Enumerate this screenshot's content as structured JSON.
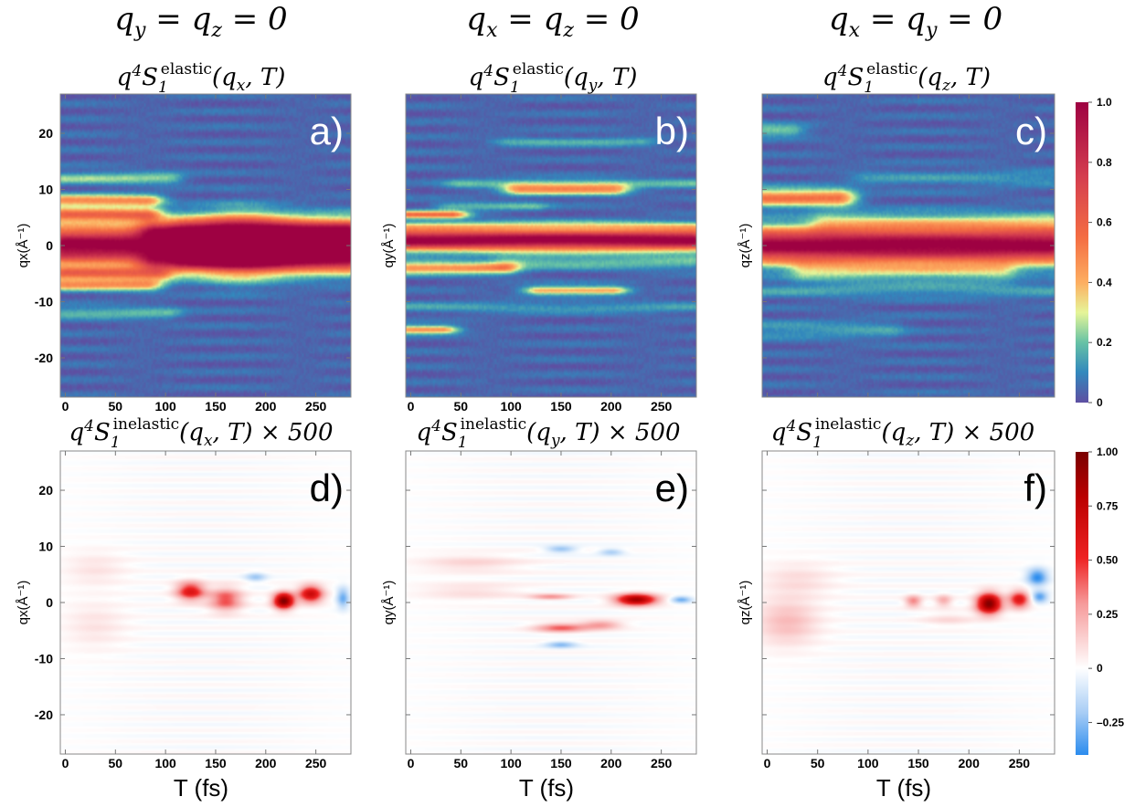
{
  "chart_data": [
    {
      "type": "heatmap",
      "panel_label": "a)",
      "column_header": "q_y = q_z = 0",
      "title": "q^4 S_1^elastic(q_x, T)",
      "xlabel": "",
      "ylabel": "qx(Å⁻¹)",
      "x_range": [
        -5,
        285
      ],
      "y_range": [
        -27,
        27
      ],
      "x_ticks": [
        "0",
        "50",
        "100",
        "150",
        "200",
        "250"
      ],
      "y_ticks": [
        "20",
        "10",
        "0",
        "-10",
        "-20"
      ],
      "colormap": "spectral",
      "colorbar": [
        0,
        1
      ],
      "features": [
        {
          "q": 0,
          "width": 3.3,
          "t_start": 0,
          "t_end": 280,
          "value": 1.0
        },
        {
          "q": 2.8,
          "width": 1.5,
          "t_start": 90,
          "t_end": 280,
          "value": 0.45
        },
        {
          "q": -2.8,
          "width": 1.5,
          "t_start": 90,
          "t_end": 280,
          "value": 0.4
        },
        {
          "q": 5.5,
          "width": 1.2,
          "t_start": 0,
          "t_end": 80,
          "value": 0.5
        },
        {
          "q": 8.0,
          "width": 1.0,
          "t_start": 0,
          "t_end": 80,
          "value": 0.45
        },
        {
          "q": -5.0,
          "width": 1.2,
          "t_start": 0,
          "t_end": 90,
          "value": 0.45
        },
        {
          "q": -7.0,
          "width": 1.0,
          "t_start": 0,
          "t_end": 80,
          "value": 0.4
        },
        {
          "q": 12.0,
          "width": 1.0,
          "t_start": 0,
          "t_end": 100,
          "value": 0.2
        },
        {
          "q": -12.0,
          "width": 1.0,
          "t_start": 0,
          "t_end": 100,
          "value": 0.15
        },
        {
          "q": 4.0,
          "width": 2.0,
          "t_start": 120,
          "t_end": 280,
          "value": 0.15
        },
        {
          "q": -4.0,
          "width": 2.0,
          "t_start": 120,
          "t_end": 280,
          "value": 0.15
        }
      ]
    },
    {
      "type": "heatmap",
      "panel_label": "b)",
      "column_header": "q_x = q_z = 0",
      "title": "q^4 S_1^elastic(q_y, T)",
      "xlabel": "",
      "ylabel": "qy(Å⁻¹)",
      "x_range": [
        -5,
        285
      ],
      "y_range": [
        -27,
        27
      ],
      "x_ticks": [
        "0",
        "50",
        "100",
        "150",
        "200",
        "250"
      ],
      "y_ticks": [],
      "colormap": "spectral",
      "colorbar": [
        0,
        1
      ],
      "features": [
        {
          "q": 1.0,
          "width": 1.8,
          "t_start": 0,
          "t_end": 280,
          "value": 1.0
        },
        {
          "q": 3.5,
          "width": 0.8,
          "t_start": 0,
          "t_end": 280,
          "value": 0.2
        },
        {
          "q": 5.5,
          "width": 0.7,
          "t_start": 0,
          "t_end": 40,
          "value": 0.5
        },
        {
          "q": 10.0,
          "width": 1.0,
          "t_start": 110,
          "t_end": 200,
          "value": 0.4
        },
        {
          "q": 11.0,
          "width": 0.8,
          "t_start": 50,
          "t_end": 280,
          "value": 0.15
        },
        {
          "q": -4.0,
          "width": 1.0,
          "t_start": 0,
          "t_end": 90,
          "value": 0.45
        },
        {
          "q": -3.0,
          "width": 1.2,
          "t_start": 100,
          "t_end": 280,
          "value": 0.15
        },
        {
          "q": -8.0,
          "width": 0.7,
          "t_start": 130,
          "t_end": 200,
          "value": 0.4
        },
        {
          "q": -15.0,
          "width": 0.7,
          "t_start": 0,
          "t_end": 30,
          "value": 0.45
        },
        {
          "q": 18.5,
          "width": 0.8,
          "t_start": 100,
          "t_end": 230,
          "value": 0.12
        },
        {
          "q": -11.0,
          "width": 0.9,
          "t_start": 0,
          "t_end": 280,
          "value": 0.1
        },
        {
          "q": 7.0,
          "width": 0.7,
          "t_start": 40,
          "t_end": 120,
          "value": 0.15
        }
      ]
    },
    {
      "type": "heatmap",
      "panel_label": "c)",
      "column_header": "q_x = q_y = 0",
      "title": "q^4 S_1^elastic(q_z, T)",
      "xlabel": "",
      "ylabel": "qz(Å⁻¹)",
      "x_range": [
        -5,
        285
      ],
      "y_range": [
        -27,
        27
      ],
      "x_ticks": [],
      "y_ticks": [],
      "colormap": "spectral",
      "colorbar": [
        0,
        1
      ],
      "features": [
        {
          "q": 0,
          "width": 3.0,
          "t_start": 0,
          "t_end": 280,
          "value": 1.0
        },
        {
          "q": 8.5,
          "width": 1.5,
          "t_start": 0,
          "t_end": 70,
          "value": 0.5
        },
        {
          "q": 4.0,
          "width": 1.8,
          "t_start": 60,
          "t_end": 280,
          "value": 0.2
        },
        {
          "q": -4.5,
          "width": 1.8,
          "t_start": 40,
          "t_end": 230,
          "value": 0.2
        },
        {
          "q": -8.0,
          "width": 1.2,
          "t_start": 0,
          "t_end": 280,
          "value": 0.1
        },
        {
          "q": 20.5,
          "width": 1.0,
          "t_start": 0,
          "t_end": 20,
          "value": 0.2
        },
        {
          "q": -15.0,
          "width": 1.5,
          "t_start": 0,
          "t_end": 120,
          "value": 0.1
        },
        {
          "q": 12.0,
          "width": 1.5,
          "t_start": 100,
          "t_end": 280,
          "value": 0.08
        }
      ]
    },
    {
      "type": "heatmap",
      "panel_label": "d)",
      "title": "q^4 S_1^inelastic(q_x, T) × 500",
      "xlabel": "T (fs)",
      "ylabel": "qx(Å⁻¹)",
      "x_range": [
        -5,
        285
      ],
      "y_range": [
        -27,
        27
      ],
      "x_ticks": [
        "0",
        "50",
        "100",
        "150",
        "200",
        "250"
      ],
      "y_ticks": [
        "20",
        "10",
        "0",
        "-10",
        "-20"
      ],
      "colormap": "diverging",
      "colorbar": [
        -0.4,
        1
      ],
      "blobs": [
        {
          "t": 125,
          "q": 2.0,
          "st": 14,
          "sq": 1.6,
          "value": 0.6
        },
        {
          "t": 160,
          "q": 0.5,
          "st": 16,
          "sq": 2.0,
          "value": 0.45
        },
        {
          "t": 218,
          "q": 0.3,
          "st": 10,
          "sq": 1.4,
          "value": 1.0
        },
        {
          "t": 245,
          "q": 1.5,
          "st": 12,
          "sq": 1.5,
          "value": 0.7
        },
        {
          "t": 277,
          "q": 0.8,
          "st": 6,
          "sq": 1.8,
          "value": -0.3
        },
        {
          "t": 30,
          "q": 6.0,
          "st": 30,
          "sq": 3.0,
          "value": 0.08
        },
        {
          "t": 30,
          "q": -4.0,
          "st": 30,
          "sq": 4.0,
          "value": 0.08
        },
        {
          "t": 190,
          "q": 4.5,
          "st": 10,
          "sq": 0.8,
          "value": -0.2
        }
      ]
    },
    {
      "type": "heatmap",
      "panel_label": "e)",
      "title": "q^4 S_1^inelastic(q_y, T) × 500",
      "xlabel": "T (fs)",
      "ylabel": "qy(Å⁻¹)",
      "x_range": [
        -5,
        285
      ],
      "y_range": [
        -27,
        27
      ],
      "x_ticks": [
        "0",
        "50",
        "100",
        "150",
        "200",
        "250"
      ],
      "y_ticks": [],
      "colormap": "diverging",
      "colorbar": [
        -0.4,
        1
      ],
      "blobs": [
        {
          "t": 225,
          "q": 0.5,
          "st": 20,
          "sq": 1.0,
          "value": 0.9
        },
        {
          "t": 150,
          "q": -4.5,
          "st": 25,
          "sq": 0.8,
          "value": 0.4
        },
        {
          "t": 190,
          "q": -4.0,
          "st": 20,
          "sq": 0.8,
          "value": 0.3
        },
        {
          "t": 60,
          "q": 7.0,
          "st": 50,
          "sq": 1.5,
          "value": 0.12
        },
        {
          "t": 60,
          "q": 2.0,
          "st": 50,
          "sq": 1.5,
          "value": 0.1
        },
        {
          "t": 150,
          "q": 9.5,
          "st": 15,
          "sq": 0.6,
          "value": -0.25
        },
        {
          "t": 200,
          "q": 9.0,
          "st": 12,
          "sq": 0.6,
          "value": -0.2
        },
        {
          "t": 150,
          "q": -7.5,
          "st": 15,
          "sq": 0.6,
          "value": -0.25
        },
        {
          "t": 270,
          "q": 0.5,
          "st": 10,
          "sq": 0.6,
          "value": -0.3
        },
        {
          "t": 140,
          "q": 1.0,
          "st": 20,
          "sq": 0.5,
          "value": 0.3
        }
      ]
    },
    {
      "type": "heatmap",
      "panel_label": "f)",
      "title": "q^4 S_1^inelastic(q_z, T) × 500",
      "xlabel": "T (fs)",
      "ylabel": "qz(Å⁻¹)",
      "x_range": [
        -5,
        285
      ],
      "y_range": [
        -27,
        27
      ],
      "x_ticks": [
        "0",
        "50",
        "100",
        "150",
        "200",
        "250"
      ],
      "y_ticks": [],
      "colormap": "diverging",
      "colorbar": [
        -0.4,
        1
      ],
      "blobs": [
        {
          "t": 220,
          "q": -0.2,
          "st": 12,
          "sq": 1.8,
          "value": 1.0
        },
        {
          "t": 250,
          "q": 0.5,
          "st": 10,
          "sq": 1.5,
          "value": 0.6
        },
        {
          "t": 145,
          "q": 0.2,
          "st": 8,
          "sq": 1.0,
          "value": 0.35
        },
        {
          "t": 175,
          "q": 0.3,
          "st": 8,
          "sq": 1.0,
          "value": 0.25
        },
        {
          "t": 20,
          "q": -3.5,
          "st": 30,
          "sq": 4.0,
          "value": 0.2
        },
        {
          "t": 30,
          "q": 4.0,
          "st": 35,
          "sq": 3.0,
          "value": 0.1
        },
        {
          "t": 268,
          "q": 4.5,
          "st": 10,
          "sq": 1.5,
          "value": -0.4
        },
        {
          "t": 270,
          "q": 1.0,
          "st": 8,
          "sq": 1.0,
          "value": -0.35
        },
        {
          "t": 180,
          "q": -3.0,
          "st": 25,
          "sq": 1.2,
          "value": 0.1
        }
      ]
    }
  ],
  "colorbars": {
    "elastic": {
      "ticks": [
        "1.0",
        "0.8",
        "0.6",
        "0.4",
        "0.2",
        "0"
      ],
      "values": [
        1.0,
        0.8,
        0.6,
        0.4,
        0.2,
        0.0
      ]
    },
    "inelastic": {
      "ticks": [
        "1.00",
        "0.75",
        "0.50",
        "0.25",
        "0",
        "–0.25"
      ],
      "values": [
        1.0,
        0.75,
        0.5,
        0.25,
        0.0,
        -0.25
      ],
      "min": -0.4,
      "max": 1.0
    }
  }
}
